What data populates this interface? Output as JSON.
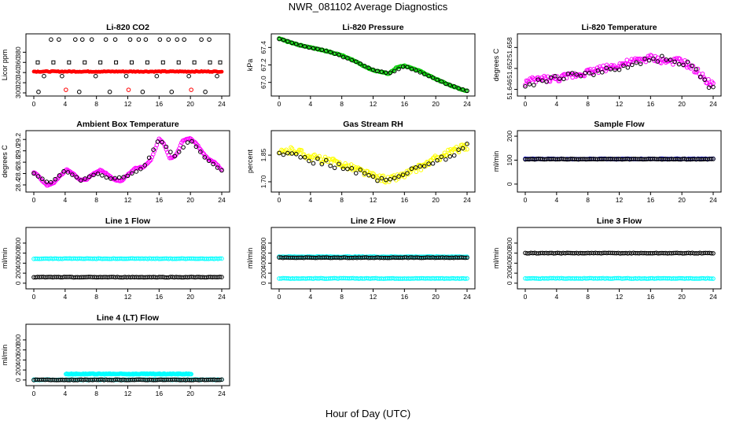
{
  "figure": {
    "title": "NWR_081102  Average Diagnostics",
    "xlabel": "Hour of Day (UTC)"
  },
  "chart_data": [
    {
      "type": "scatter",
      "title": "Li-820 CO2",
      "ylabel": "Licor ppm",
      "xlim": [
        0,
        24
      ],
      "ylim": [
        300,
        410
      ],
      "xticks": [
        "0",
        "4",
        "8",
        "12",
        "16",
        "20",
        "24"
      ],
      "yticks": [
        "300",
        "320",
        "340",
        "360",
        "380"
      ],
      "series": [
        {
          "color": "#000000",
          "marker": "square",
          "x": [
            0.5,
            2.5,
            4.5,
            6.5,
            8.5,
            10.5,
            12.5,
            14.5,
            16.5,
            18.5,
            20.5,
            22.5,
            23.8
          ],
          "y": [
            360,
            360,
            360,
            360,
            360,
            360,
            360,
            360,
            360,
            360,
            360,
            360,
            360
          ]
        },
        {
          "color": "#000000",
          "marker": "circle",
          "x": [
            2.2,
            3.2,
            5.3,
            6.2,
            7.4,
            9.2,
            10.4,
            12.3,
            13.4,
            14.3,
            16.1,
            17.2,
            18.3,
            19.2,
            21.4,
            22.4
          ],
          "y": [
            405,
            405,
            405,
            405,
            405,
            405,
            405,
            405,
            405,
            405,
            405,
            405,
            405,
            405,
            405,
            405
          ]
        },
        {
          "color": "#000000",
          "marker": "circle",
          "x": [
            0.6,
            1.3,
            3.6,
            5.8,
            7.9,
            9.7,
            11.8,
            13.9,
            15.7,
            17.6,
            19.8,
            21.9,
            23.4
          ],
          "y": [
            302,
            333,
            333,
            302,
            333,
            302,
            333,
            302,
            333,
            302,
            333,
            302,
            333
          ]
        },
        {
          "color": "#ff0000",
          "marker": "dense-band",
          "x": [
            0,
            24
          ],
          "y": [
            342,
            342
          ]
        },
        {
          "color": "#ff0000",
          "marker": "circle",
          "x": [
            4.1,
            12.1,
            20.1
          ],
          "y": [
            306,
            306,
            306
          ]
        }
      ]
    },
    {
      "type": "line",
      "title": "Li-820 Pressure",
      "ylabel": "kPa",
      "xlim": [
        0,
        24
      ],
      "ylim": [
        66.88,
        67.52
      ],
      "xticks": [
        "0",
        "4",
        "8",
        "12",
        "16",
        "20",
        "24"
      ],
      "yticks": [
        "67.0",
        "67.2",
        "67.4"
      ],
      "series": [
        {
          "color": "#00cc00",
          "marker": "circle",
          "x": [
            0,
            2,
            4,
            6,
            8,
            10,
            11,
            12,
            13,
            14,
            15,
            16,
            18,
            20,
            22,
            24
          ],
          "y": [
            67.5,
            67.44,
            67.4,
            67.36,
            67.31,
            67.23,
            67.18,
            67.14,
            67.12,
            67.1,
            67.17,
            67.19,
            67.13,
            67.04,
            66.96,
            66.9
          ]
        },
        {
          "color": "#000000",
          "marker": "circle",
          "x": [
            0,
            3,
            6,
            9,
            12,
            14,
            16,
            19,
            22,
            24
          ],
          "y": [
            67.5,
            67.42,
            67.36,
            67.27,
            67.14,
            67.1,
            67.19,
            67.08,
            66.96,
            66.9
          ]
        }
      ]
    },
    {
      "type": "scatter",
      "title": "Li-820 Temperature",
      "ylabel": "degrees C",
      "xlim": [
        0,
        24
      ],
      "ylim": [
        51.645,
        51.661
      ],
      "xticks": [
        "0",
        "4",
        "8",
        "12",
        "16",
        "20",
        "24"
      ],
      "yticks": [
        "51.646",
        "51.652",
        "51.658"
      ],
      "series": [
        {
          "color": "#ff00ff",
          "marker": "circle",
          "x": [
            0,
            2,
            4,
            6,
            8,
            10,
            12,
            14,
            16,
            18,
            20,
            22,
            24
          ],
          "y": [
            51.648,
            51.649,
            51.649,
            51.65,
            51.651,
            51.652,
            51.653,
            51.654,
            51.655,
            51.654,
            51.654,
            51.651,
            51.647
          ]
        },
        {
          "color": "#000000",
          "marker": "circle",
          "x": [
            0,
            3,
            6,
            9,
            12,
            15,
            18,
            21,
            24
          ],
          "y": [
            51.647,
            51.649,
            51.65,
            51.651,
            51.652,
            51.654,
            51.655,
            51.653,
            51.646
          ]
        }
      ]
    },
    {
      "type": "line",
      "title": "Ambient Box Temperature",
      "ylabel": "degrees C",
      "xlim": [
        0,
        24
      ],
      "ylim": [
        28.33,
        29.3
      ],
      "xticks": [
        "0",
        "4",
        "8",
        "12",
        "16",
        "20",
        "24"
      ],
      "yticks": [
        "28.4",
        "28.6",
        "28.8",
        "29.0",
        "29.2"
      ],
      "series": [
        {
          "color": "#ff00ff",
          "marker": "circle",
          "x": [
            0,
            0.5,
            1,
            1.7,
            2.5,
            3.3,
            4.2,
            5,
            6,
            6.8,
            7.6,
            8.5,
            9.3,
            10.3,
            11.2,
            12,
            13,
            14,
            15,
            16,
            16.6,
            17.4,
            18.2,
            19,
            20,
            20.8,
            21.6,
            22.4,
            23.2,
            24
          ],
          "y": [
            28.62,
            28.58,
            28.48,
            28.39,
            28.43,
            28.55,
            28.67,
            28.6,
            28.48,
            28.5,
            28.6,
            28.66,
            28.6,
            28.49,
            28.47,
            28.58,
            28.7,
            28.71,
            28.85,
            29.22,
            29.12,
            28.86,
            28.93,
            29.18,
            29.22,
            29.12,
            28.96,
            28.84,
            28.79,
            28.66
          ]
        },
        {
          "color": "#000000",
          "marker": "circle",
          "x": [
            0,
            2,
            4,
            6,
            8,
            10,
            12,
            14,
            16,
            18,
            20,
            22,
            24
          ],
          "y": [
            28.6,
            28.42,
            28.66,
            28.48,
            28.6,
            28.5,
            28.56,
            28.7,
            29.2,
            28.9,
            29.2,
            28.86,
            28.65
          ]
        }
      ]
    },
    {
      "type": "scatter",
      "title": "Gas Stream RH",
      "ylabel": "percent",
      "xlim": [
        0,
        24
      ],
      "ylim": [
        1.66,
        1.97
      ],
      "xticks": [
        "0",
        "4",
        "8",
        "12",
        "16",
        "20",
        "24"
      ],
      "yticks": [
        "1.70",
        "1.85"
      ],
      "series": [
        {
          "color": "#ffff00",
          "marker": "circle",
          "x": [
            0,
            2,
            4,
            6,
            8,
            10,
            12,
            14,
            16,
            18,
            20,
            22,
            24
          ],
          "y": [
            1.86,
            1.88,
            1.84,
            1.82,
            1.8,
            1.77,
            1.73,
            1.71,
            1.74,
            1.78,
            1.83,
            1.87,
            1.9
          ]
        },
        {
          "color": "#000000",
          "marker": "circle",
          "x": [
            0,
            2,
            4,
            6,
            8,
            10,
            12,
            14,
            16,
            18,
            20,
            22,
            24
          ],
          "y": [
            1.85,
            1.87,
            1.82,
            1.81,
            1.78,
            1.76,
            1.72,
            1.71,
            1.75,
            1.78,
            1.82,
            1.85,
            1.9
          ]
        }
      ]
    },
    {
      "type": "line",
      "title": "Sample Flow",
      "ylabel": "ml/min",
      "xlim": [
        0,
        24
      ],
      "ylim": [
        -20,
        210
      ],
      "xticks": [
        "0",
        "4",
        "8",
        "12",
        "16",
        "20",
        "24"
      ],
      "yticks": [
        "0",
        "100",
        "200"
      ],
      "series": [
        {
          "color": "#0000cc",
          "marker": "circle",
          "x": [
            0,
            24
          ],
          "y": [
            105,
            105
          ]
        },
        {
          "color": "#000000",
          "marker": "circle",
          "x": [
            0,
            24
          ],
          "y": [
            104,
            104
          ]
        }
      ]
    },
    {
      "type": "line",
      "title": "Line 1 Flow",
      "ylabel": "ml/min",
      "xlim": [
        0,
        24
      ],
      "ylim": [
        -50,
        1050
      ],
      "xticks": [
        "0",
        "4",
        "8",
        "12",
        "16",
        "20",
        "24"
      ],
      "yticks": [
        "0",
        "200",
        "400",
        "600",
        "800"
      ],
      "series": [
        {
          "color": "#00ffff",
          "marker": "circle",
          "x": [
            0,
            24
          ],
          "y": [
            490,
            490
          ]
        },
        {
          "color": "#000000",
          "marker": "circle",
          "x": [
            0,
            24
          ],
          "y": [
            120,
            120
          ]
        }
      ]
    },
    {
      "type": "line",
      "title": "Line 2 Flow",
      "ylabel": "ml/min",
      "xlim": [
        0,
        24
      ],
      "ylim": [
        -50,
        1050
      ],
      "xticks": [
        "0",
        "4",
        "8",
        "12",
        "16",
        "20",
        "24"
      ],
      "yticks": [
        "0",
        "200",
        "400",
        "600",
        "800"
      ],
      "series": [
        {
          "color": "#00ffff",
          "marker": "circle",
          "x": [
            0,
            24
          ],
          "y": [
            95,
            95
          ]
        },
        {
          "color": "#00ffff",
          "marker": "circle",
          "x": [
            0,
            24
          ],
          "y": [
            530,
            530
          ]
        },
        {
          "color": "#000000",
          "marker": "circle",
          "x": [
            0,
            24
          ],
          "y": [
            510,
            510
          ]
        }
      ]
    },
    {
      "type": "line",
      "title": "Line 3 Flow",
      "ylabel": "ml/min",
      "xlim": [
        0,
        24
      ],
      "ylim": [
        -50,
        1050
      ],
      "xticks": [
        "0",
        "4",
        "8",
        "12",
        "16",
        "20",
        "24"
      ],
      "yticks": [
        "0",
        "200",
        "400",
        "600",
        "800"
      ],
      "series": [
        {
          "color": "#00ffff",
          "marker": "circle",
          "x": [
            0,
            24
          ],
          "y": [
            95,
            95
          ]
        },
        {
          "color": "#000000",
          "marker": "circle",
          "x": [
            0,
            24
          ],
          "y": [
            600,
            600
          ]
        }
      ]
    },
    {
      "type": "line",
      "title": "Line 4 (LT) Flow",
      "ylabel": "ml/min",
      "xlim": [
        0,
        24
      ],
      "ylim": [
        -50,
        1050
      ],
      "xticks": [
        "0",
        "4",
        "8",
        "12",
        "16",
        "20",
        "24"
      ],
      "yticks": [
        "0",
        "200",
        "400",
        "600",
        "800"
      ],
      "series": [
        {
          "color": "#00ffff",
          "marker": "circle",
          "x": [
            0,
            24
          ],
          "y": [
            5,
            5
          ]
        },
        {
          "color": "#000000",
          "marker": "circle",
          "x": [
            0,
            24
          ],
          "y": [
            3,
            3
          ]
        },
        {
          "color": "#00ffff",
          "marker": "circle",
          "x": [
            4.1,
            12.1,
            20.1
          ],
          "y": [
            120,
            120,
            120
          ]
        }
      ]
    }
  ]
}
